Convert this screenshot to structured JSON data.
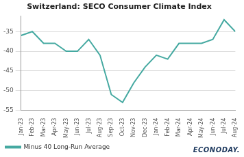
{
  "chart_data": {
    "type": "line",
    "title": "Switzerland: SECO Consumer Climate Index",
    "categories": [
      "Jan-23",
      "Feb-23",
      "Mar-23",
      "Apr-23",
      "May-23",
      "Jun-23",
      "Jul-23",
      "Aug-23",
      "Sep-23",
      "Oct-23",
      "Nov-23",
      "Dec-23",
      "Jan-24",
      "Feb-24",
      "Mar-24",
      "Apr-24",
      "May-24",
      "Jun-24",
      "Jul-24",
      "Aug-24"
    ],
    "series": [
      {
        "name": "Minus 40 Long-Run Average",
        "color": "#45a9a1",
        "values": [
          -36,
          -35,
          -38,
          -38,
          -40,
          -40,
          -37,
          -41,
          -51,
          -53,
          -48,
          -44,
          -41,
          -42,
          -38,
          -38,
          -38,
          -37,
          -32,
          -35
        ]
      }
    ],
    "ylim": [
      -55,
      -31
    ],
    "yticks": [
      -55,
      -50,
      -45,
      -40,
      -35
    ],
    "grid": true,
    "legend": "bottom",
    "annotations": [
      "ECONODAY."
    ]
  }
}
